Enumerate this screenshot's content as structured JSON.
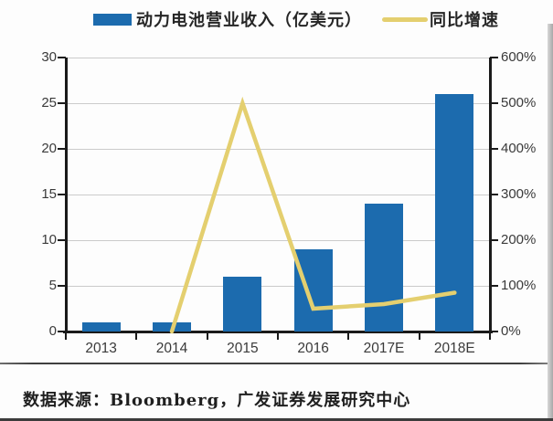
{
  "legend": {
    "revenue_label": "动力电池营业收入（亿美元）",
    "growth_label": "同比增速"
  },
  "source_note": "数据来源：Bloomberg，广发证券发展研究中心",
  "colors": {
    "bar": "#1C6BAE",
    "line": "#E4CF6F",
    "axis": "#1a1a1a",
    "grid": "#cbcbcb",
    "label_text": "#3a3a3a"
  },
  "chart_data": {
    "type": "bar",
    "subtype": "bar-with-line-overlay",
    "categories": [
      "2013",
      "2014",
      "2015",
      "2016",
      "2017E",
      "2018E"
    ],
    "series": [
      {
        "name": "动力电池营业收入（亿美元）",
        "type": "bar",
        "axis": "left",
        "values": [
          1,
          1,
          6,
          9,
          14,
          26
        ]
      },
      {
        "name": "同比增速",
        "type": "line",
        "axis": "right",
        "unit": "%",
        "values": [
          null,
          0,
          500,
          50,
          60,
          85
        ]
      }
    ],
    "title": "",
    "xlabel": "",
    "ylabel_left": "",
    "ylabel_right": "",
    "left_axis": {
      "min": 0,
      "max": 30,
      "step": 5,
      "ticks": [
        "0",
        "5",
        "10",
        "15",
        "20",
        "25",
        "30"
      ]
    },
    "right_axis": {
      "min": 0,
      "max": 600,
      "step": 100,
      "ticks": [
        "0%",
        "100%",
        "200%",
        "300%",
        "400%",
        "500%",
        "600%"
      ]
    },
    "grid": true,
    "legend_position": "top"
  }
}
